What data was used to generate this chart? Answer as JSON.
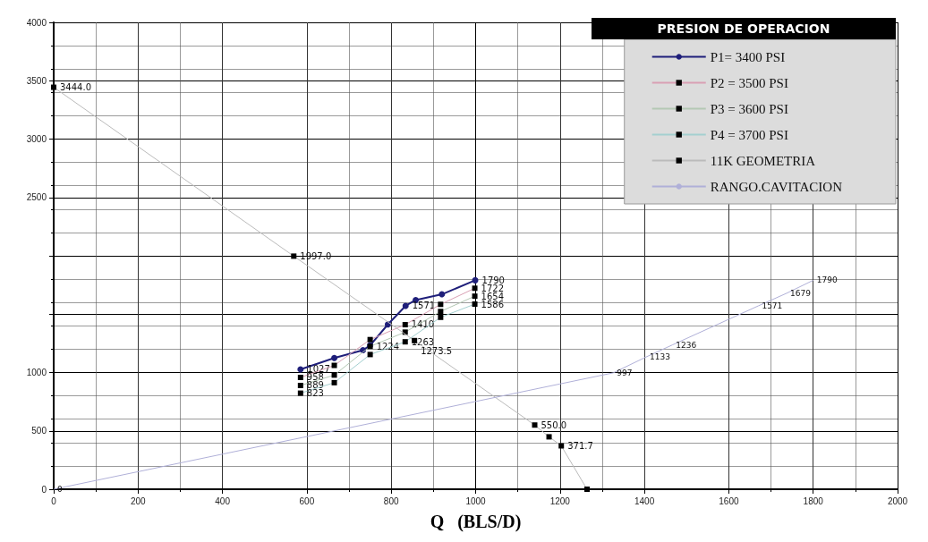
{
  "chart_data": {
    "type": "line",
    "xlabel": "Q   (BLS/D)",
    "legend_title": "PRESION DE OPERACION",
    "legend": "top right",
    "grid": true,
    "xlim": [
      0,
      2000
    ],
    "xticks": [
      0,
      200,
      400,
      600,
      800,
      1000,
      1200,
      1400,
      1600,
      1800,
      2000
    ],
    "ylim": [
      0,
      4000
    ],
    "yticks": [
      0,
      500,
      1000,
      {
        "value": 1500,
        "label": null
      },
      {
        "value": 2000,
        "label": null
      },
      2500,
      3000,
      3500,
      4000
    ],
    "series": [
      {
        "name": "P1= 3400 PSI",
        "color": "#1f1f7a",
        "marker": "circle",
        "x": [
          585,
          665,
          733,
          750,
          792,
          834,
          858,
          920,
          999
        ],
        "values": [
          1027,
          1125,
          1191,
          1233,
          1412,
          1571,
          1621,
          1670,
          1790
        ],
        "value_labels": [
          "1027",
          null,
          null,
          null,
          null,
          "1571",
          null,
          null,
          "1790"
        ]
      },
      {
        "name": "P2 = 3500 PSI",
        "color": "#d9a0b4",
        "marker": "square",
        "x": [
          585,
          665,
          750,
          833,
          917,
          998
        ],
        "values": [
          958,
          1061,
          1282,
          1410,
          1584,
          1722
        ],
        "value_labels": [
          "958",
          null,
          null,
          "1410",
          null,
          "1722"
        ]
      },
      {
        "name": "P3 = 3600 PSI",
        "color": "#b4c8b4",
        "marker": "square",
        "x": [
          585,
          665,
          750,
          833,
          917,
          998
        ],
        "values": [
          889,
          978,
          1224,
          1346,
          1523,
          1654
        ],
        "value_labels": [
          "889",
          null,
          "1224",
          null,
          null,
          "1654"
        ]
      },
      {
        "name": "P4 = 3700 PSI",
        "color": "#a4d0d0",
        "marker": "square",
        "x": [
          585,
          665,
          750,
          833,
          917,
          998
        ],
        "values": [
          823,
          913,
          1154,
          1263,
          1473,
          1586
        ],
        "value_labels": [
          "823",
          null,
          null,
          "1263",
          null,
          "1586"
        ]
      },
      {
        "name": "11K GEOMETRIA",
        "color": "#bbbbbb",
        "marker": "square",
        "x": [
          0,
          569,
          855,
          1140,
          1174,
          1203,
          1264
        ],
        "values": [
          3444.0,
          1997.0,
          1273.5,
          550.0,
          449,
          371.7,
          0
        ],
        "value_labels": [
          "3444.0",
          "1997.0",
          "1273.5",
          "550.0",
          null,
          "371.7",
          null
        ]
      },
      {
        "name": "RANGO.CAVITACION",
        "color": "#b0b0d8",
        "marker": "none",
        "x": [
          0,
          1326,
          1404,
          1466,
          1670,
          1737,
          1800
        ],
        "values": [
          0,
          997,
          1133,
          1236,
          1571,
          1679,
          1790
        ],
        "value_labels": [
          "0",
          "997",
          "1133",
          "1236",
          "1571",
          "1679",
          "1790"
        ]
      }
    ]
  }
}
